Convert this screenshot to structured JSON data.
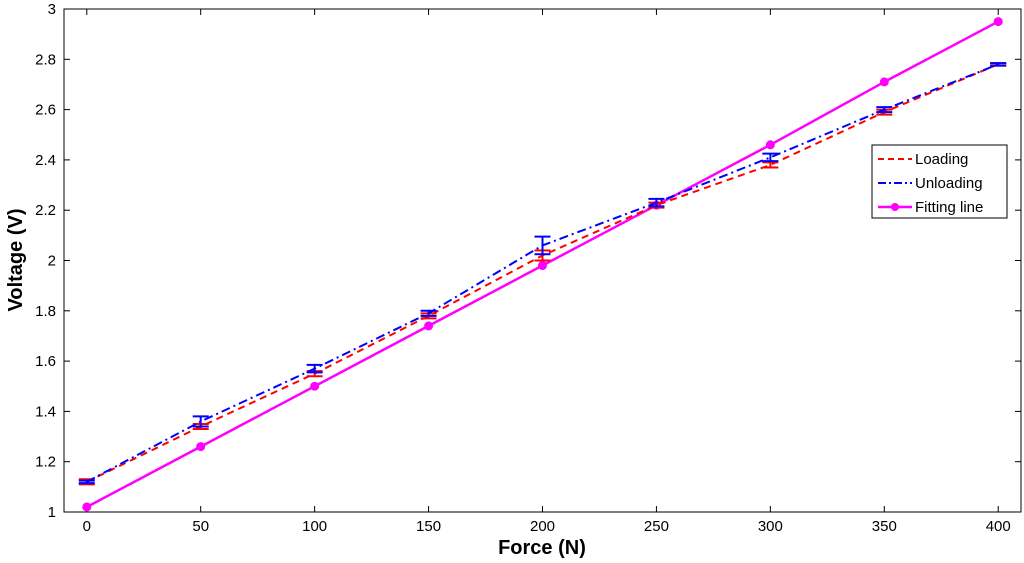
{
  "chart_data": {
    "type": "line",
    "xlabel": "Force (N)",
    "ylabel": "Voltage (V)",
    "xlim": [
      -10,
      410
    ],
    "ylim": [
      1,
      3
    ],
    "xticks": [
      0,
      50,
      100,
      150,
      200,
      250,
      300,
      350,
      400
    ],
    "yticks": [
      1,
      1.2,
      1.4,
      1.6,
      1.8,
      2,
      2.2,
      2.4,
      2.6,
      2.8,
      3
    ],
    "xtick_labels": [
      "0",
      "50",
      "100",
      "150",
      "200",
      "250",
      "300",
      "350",
      "400"
    ],
    "ytick_labels": [
      "1",
      "1.2",
      "1.4",
      "1.6",
      "1.8",
      "2",
      "2.2",
      "2.4",
      "2.6",
      "2.8",
      "3"
    ],
    "grid": false,
    "legend_position": "right",
    "x": [
      0,
      50,
      100,
      150,
      200,
      250,
      300,
      350,
      400
    ],
    "series": [
      {
        "name": "Loading",
        "color": "#ff0000",
        "style": "dashed",
        "values": [
          1.12,
          1.34,
          1.55,
          1.78,
          2.02,
          2.22,
          2.38,
          2.59,
          2.78
        ],
        "error": [
          0.01,
          0.01,
          0.01,
          0.01,
          0.02,
          0.01,
          0.01,
          0.01,
          0.005
        ]
      },
      {
        "name": "Unloading",
        "color": "#0000ff",
        "style": "dash-dot",
        "values": [
          1.12,
          1.36,
          1.57,
          1.79,
          2.06,
          2.23,
          2.41,
          2.6,
          2.78
        ],
        "error": [
          0.005,
          0.02,
          0.015,
          0.01,
          0.035,
          0.015,
          0.015,
          0.01,
          0.005
        ]
      },
      {
        "name": "Fitting line",
        "color": "#ff00ff",
        "style": "solid-marker",
        "values": [
          1.02,
          1.26,
          1.5,
          1.74,
          1.98,
          2.22,
          2.46,
          2.71,
          2.95
        ]
      }
    ]
  }
}
